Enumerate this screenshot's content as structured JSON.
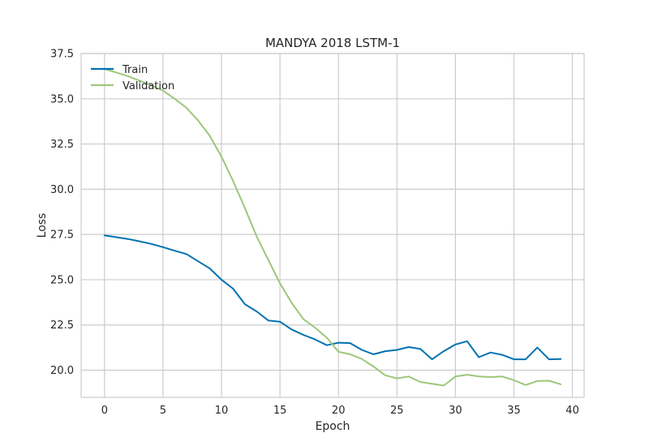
{
  "chart_data": {
    "type": "line",
    "title": "MANDYA 2018 LSTM-1",
    "xlabel": "Epoch",
    "ylabel": "Loss",
    "xlim": [
      -2,
      41
    ],
    "ylim": [
      18.5,
      37.5
    ],
    "xticks": [
      0,
      5,
      10,
      15,
      20,
      25,
      30,
      35,
      40
    ],
    "yticks": [
      20.0,
      22.5,
      25.0,
      27.5,
      30.0,
      32.5,
      35.0,
      37.5
    ],
    "ytick_labels": [
      "20.0",
      "22.5",
      "25.0",
      "27.5",
      "30.0",
      "32.5",
      "35.0",
      "37.5"
    ],
    "grid": true,
    "legend_position": "top-left",
    "x": [
      0,
      1,
      2,
      3,
      4,
      5,
      6,
      7,
      8,
      9,
      10,
      11,
      12,
      13,
      14,
      15,
      16,
      17,
      18,
      19,
      20,
      21,
      22,
      23,
      24,
      25,
      26,
      27,
      28,
      29,
      30,
      31,
      32,
      33,
      34,
      35,
      36,
      37,
      38,
      39
    ],
    "series": [
      {
        "name": "Train",
        "color": "#0072b2",
        "values": [
          27.45,
          27.35,
          27.25,
          27.12,
          26.98,
          26.8,
          26.6,
          26.42,
          26.02,
          25.62,
          25.0,
          24.5,
          23.65,
          23.25,
          22.75,
          22.68,
          22.25,
          21.95,
          21.7,
          21.38,
          21.52,
          21.5,
          21.12,
          20.88,
          21.05,
          21.12,
          21.28,
          21.18,
          20.6,
          21.05,
          21.42,
          21.6,
          20.72,
          20.98,
          20.85,
          20.6,
          20.6,
          21.25,
          20.6,
          20.62
        ]
      },
      {
        "name": "Validation",
        "color": "#9dc77a",
        "values": [
          36.65,
          36.45,
          36.25,
          36.0,
          35.75,
          35.45,
          35.0,
          34.5,
          33.8,
          32.95,
          31.8,
          30.45,
          28.95,
          27.4,
          26.1,
          24.8,
          23.72,
          22.82,
          22.35,
          21.8,
          21.02,
          20.88,
          20.62,
          20.2,
          19.72,
          19.55,
          19.65,
          19.35,
          19.25,
          19.15,
          19.65,
          19.75,
          19.65,
          19.62,
          19.65,
          19.45,
          19.18,
          19.4,
          19.42,
          19.22
        ]
      }
    ]
  }
}
